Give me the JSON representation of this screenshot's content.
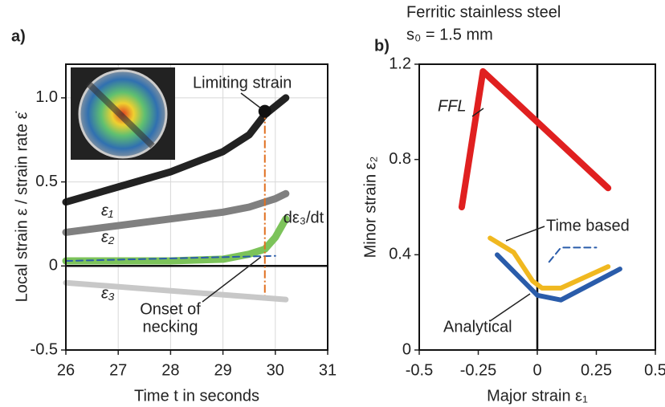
{
  "chart_data": [
    {
      "type": "line",
      "panel": "a)",
      "xlabel": "Time t in seconds",
      "ylabel": "Local strain ε / strain rate ε̇",
      "xlim": [
        26,
        31
      ],
      "xticks": [
        26,
        27,
        28,
        29,
        30,
        31
      ],
      "ylim": [
        -0.5,
        1.2
      ],
      "yticks": [
        -0.5,
        0,
        0.5,
        {
          "value": 1,
          "label": "1.0"
        }
      ],
      "grid": true,
      "series": [
        {
          "color": "#222222",
          "x": [
            26,
            27,
            28,
            29,
            29.5,
            29.8,
            30.2
          ],
          "values": [
            0.38,
            0.47,
            0.56,
            0.68,
            0.78,
            0.9,
            1.0
          ]
        },
        {
          "color": "#808080",
          "x": [
            26,
            27,
            28,
            29,
            29.5,
            30,
            30.2
          ],
          "values": [
            0.2,
            0.24,
            0.28,
            0.32,
            0.35,
            0.4,
            0.43
          ]
        },
        {
          "color": "#c8c8c8",
          "x": [
            26,
            30.2
          ],
          "values": [
            -0.1,
            -0.2
          ]
        },
        {
          "color": "#7cc35a",
          "x": [
            26,
            28,
            29,
            29.5,
            29.8,
            30,
            30.2
          ],
          "values": [
            0.03,
            0.03,
            0.04,
            0.07,
            0.1,
            0.17,
            0.28
          ]
        },
        {
          "color": "#2a5caa",
          "dash": true,
          "x": [
            26,
            30
          ],
          "values": [
            0.03,
            0.06
          ]
        }
      ],
      "limit_point": {
        "x": 29.8,
        "y": 0.92,
        "color": "#e07020"
      },
      "annotations": [
        "Limiting strain",
        [
          "Onset of",
          "necking"
        ],
        "ε₁",
        "ε₂",
        "ε₃",
        "dε₃/dt"
      ]
    },
    {
      "type": "line",
      "panel": "b)",
      "title": "Ferritic stainless steel",
      "subtitle": "s₀ = 1.5 mm",
      "xlabel": "Major strain ε₁",
      "ylabel": "Minor strain ε₂",
      "xlim": [
        -0.5,
        0.5
      ],
      "xticks": [
        -0.5,
        -0.25,
        0,
        0.25,
        0.5
      ],
      "ylim": [
        0,
        1.2
      ],
      "yticks": [
        0,
        0.4,
        0.8,
        1.2
      ],
      "grid": false,
      "series": [
        {
          "color": "#e02020",
          "x": [
            -0.32,
            -0.23,
            0.3
          ],
          "values": [
            0.6,
            1.17,
            0.68
          ]
        },
        {
          "color": "#f0b820",
          "x": [
            -0.2,
            -0.1,
            -0.02,
            0.02,
            0.1,
            0.3
          ],
          "values": [
            0.47,
            0.41,
            0.29,
            0.26,
            0.26,
            0.35
          ]
        },
        {
          "color": "#2a5caa",
          "x": [
            -0.17,
            -0.05,
            0,
            0.1,
            0.35
          ],
          "values": [
            0.4,
            0.28,
            0.23,
            0.21,
            0.34
          ]
        },
        {
          "color": "#2a5caa",
          "dash": true,
          "x": [
            0.05,
            0.1,
            0.25
          ],
          "values": [
            0.37,
            0.43,
            0.43
          ]
        }
      ],
      "annotations": [
        "FFL",
        "Time based",
        "Analytical"
      ]
    }
  ]
}
